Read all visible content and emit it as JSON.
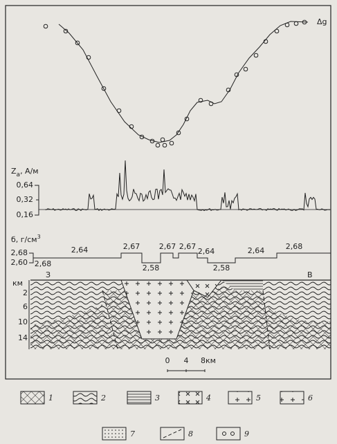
{
  "gravity_label": "Δg",
  "magnetic": {
    "label": "Z",
    "label_sub": "a",
    "label_unit": ", А/м",
    "ticks": [
      "0,64",
      "0,32",
      "0,16"
    ]
  },
  "density": {
    "label": "б, г/см",
    "label_sup": "3",
    "ticks": [
      "2,68",
      "2,60"
    ],
    "values": [
      "2,68",
      "2,64",
      "2,67",
      "2,58",
      "2,67",
      "2,67",
      "2,64",
      "2,58",
      "2,64",
      "2,68"
    ]
  },
  "section": {
    "depth_unit": "км",
    "west": "З",
    "east": "В",
    "depth_ticks": [
      "2",
      "6",
      "10",
      "14"
    ]
  },
  "scale": {
    "labels": [
      "0",
      "4",
      "8км"
    ]
  },
  "legend": [
    "1",
    "2",
    "3",
    "4",
    "5",
    "6",
    "7",
    "8",
    "9"
  ]
}
